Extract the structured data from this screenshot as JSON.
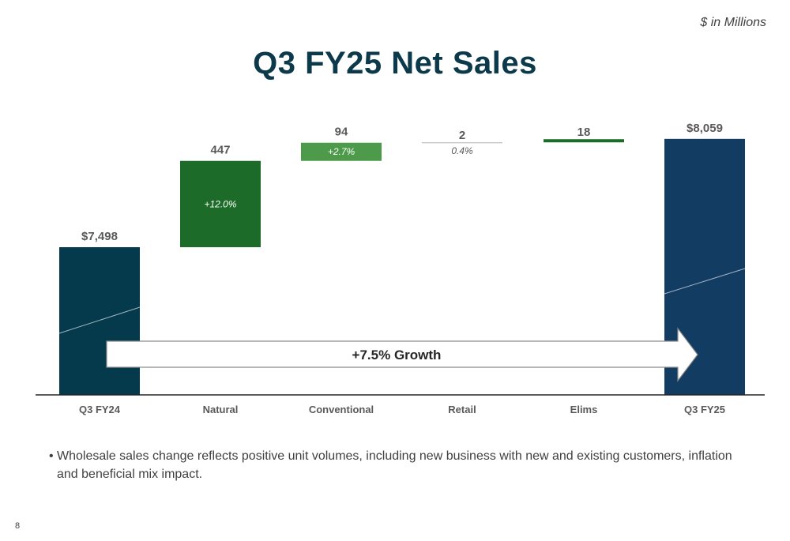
{
  "units_note": "$ in Millions",
  "page_title": "Q3 FY25 Net Sales",
  "growth_label": "+7.5% Growth",
  "bullet_text": "Wholesale sales change reflects positive unit volumes, including new business with new and existing customers, inflation and beneficial mix impact.",
  "page_number": "8",
  "colors": {
    "total_start": "#053a4c",
    "total_end": "#123c62",
    "natural": "#1c6b28",
    "conventional": "#4c9a4a",
    "retail": "#bfbfbf",
    "elims": "#1c6b28",
    "axis": "#262626",
    "label": "#595959",
    "title": "#0d3a4a"
  },
  "chart_data": {
    "type": "waterfall",
    "title": "Q3 FY25 Net Sales",
    "categories": [
      "Q3 FY24",
      "Natural",
      "Conventional",
      "Retail",
      "Elims",
      "Q3 FY25"
    ],
    "steps": [
      {
        "category": "Q3 FY24",
        "kind": "total",
        "value": 7498,
        "value_label": "$7,498",
        "pct_label": ""
      },
      {
        "category": "Natural",
        "kind": "delta",
        "value": 447,
        "value_label": "447",
        "pct_label": "+12.0%"
      },
      {
        "category": "Conventional",
        "kind": "delta",
        "value": 94,
        "value_label": "94",
        "pct_label": "+2.7%"
      },
      {
        "category": "Retail",
        "kind": "delta",
        "value": 2,
        "value_label": "2",
        "pct_label": "0.4%"
      },
      {
        "category": "Elims",
        "kind": "delta",
        "value": 18,
        "value_label": "18",
        "pct_label": ""
      },
      {
        "category": "Q3 FY25",
        "kind": "total",
        "value": 8059,
        "value_label": "$8,059",
        "pct_label": ""
      }
    ],
    "grid": false,
    "legend": "none"
  }
}
